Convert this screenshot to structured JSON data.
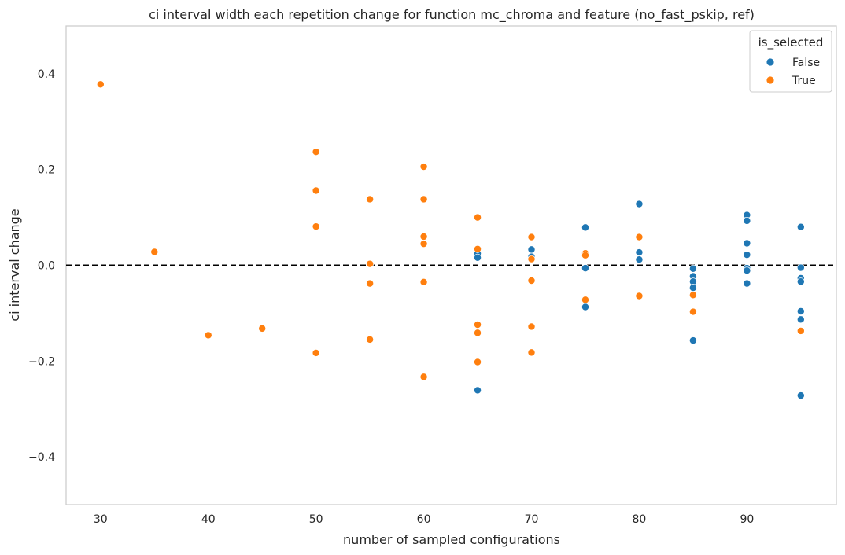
{
  "chart_data": {
    "type": "scatter",
    "title": "ci interval width each repetition change for function mc_chroma and feature (no_fast_pskip, ref)",
    "xlabel": "number of sampled configurations",
    "ylabel": "ci interval change",
    "xlim": [
      26.8,
      98.3
    ],
    "ylim": [
      -0.5,
      0.5
    ],
    "xticks": [
      30,
      40,
      50,
      60,
      70,
      80,
      90
    ],
    "yticks": [
      0.4,
      0.2,
      0.0,
      -0.2,
      -0.4
    ],
    "ytick_labels": [
      "0.4",
      "0.2",
      "0.0",
      "−0.2",
      "−0.4"
    ],
    "grid": false,
    "reference_line": {
      "y": 0.0,
      "style": "dashed",
      "color": "#000000"
    },
    "legend": {
      "title": "is_selected",
      "placement": "top-right"
    },
    "series": [
      {
        "name": "False",
        "color": "#1f77b4",
        "points": [
          [
            65,
            0.025
          ],
          [
            65,
            0.016
          ],
          [
            65,
            -0.261
          ],
          [
            70,
            0.033
          ],
          [
            70,
            0.018
          ],
          [
            75,
            0.079
          ],
          [
            75,
            -0.006
          ],
          [
            75,
            -0.087
          ],
          [
            80,
            0.128
          ],
          [
            80,
            0.027
          ],
          [
            80,
            0.012
          ],
          [
            85,
            -0.007
          ],
          [
            85,
            -0.023
          ],
          [
            85,
            -0.034
          ],
          [
            85,
            -0.047
          ],
          [
            85,
            -0.157
          ],
          [
            90,
            0.105
          ],
          [
            90,
            0.093
          ],
          [
            90,
            0.046
          ],
          [
            90,
            0.022
          ],
          [
            90,
            -0.006
          ],
          [
            90,
            -0.011
          ],
          [
            90,
            -0.038
          ],
          [
            95,
            0.08
          ],
          [
            95,
            -0.005
          ],
          [
            95,
            -0.027
          ],
          [
            95,
            -0.034
          ],
          [
            95,
            -0.096
          ],
          [
            95,
            -0.113
          ],
          [
            95,
            -0.272
          ]
        ]
      },
      {
        "name": "True",
        "color": "#ff7f0e",
        "points": [
          [
            30,
            0.378
          ],
          [
            35,
            0.028
          ],
          [
            40,
            -0.146
          ],
          [
            45,
            -0.132
          ],
          [
            50,
            0.237
          ],
          [
            50,
            0.156
          ],
          [
            50,
            0.081
          ],
          [
            50,
            -0.183
          ],
          [
            55,
            0.138
          ],
          [
            55,
            0.003
          ],
          [
            55,
            -0.038
          ],
          [
            55,
            -0.155
          ],
          [
            60,
            0.206
          ],
          [
            60,
            0.138
          ],
          [
            60,
            0.06
          ],
          [
            60,
            0.045
          ],
          [
            60,
            -0.035
          ],
          [
            60,
            -0.233
          ],
          [
            65,
            0.1
          ],
          [
            65,
            0.034
          ],
          [
            65,
            -0.124
          ],
          [
            65,
            -0.141
          ],
          [
            65,
            -0.202
          ],
          [
            70,
            0.059
          ],
          [
            70,
            0.013
          ],
          [
            70,
            -0.032
          ],
          [
            70,
            -0.128
          ],
          [
            70,
            -0.182
          ],
          [
            75,
            0.025
          ],
          [
            75,
            0.021
          ],
          [
            75,
            -0.072
          ],
          [
            80,
            0.059
          ],
          [
            80,
            -0.064
          ],
          [
            85,
            -0.062
          ],
          [
            85,
            -0.097
          ],
          [
            95,
            -0.137
          ]
        ]
      }
    ]
  }
}
